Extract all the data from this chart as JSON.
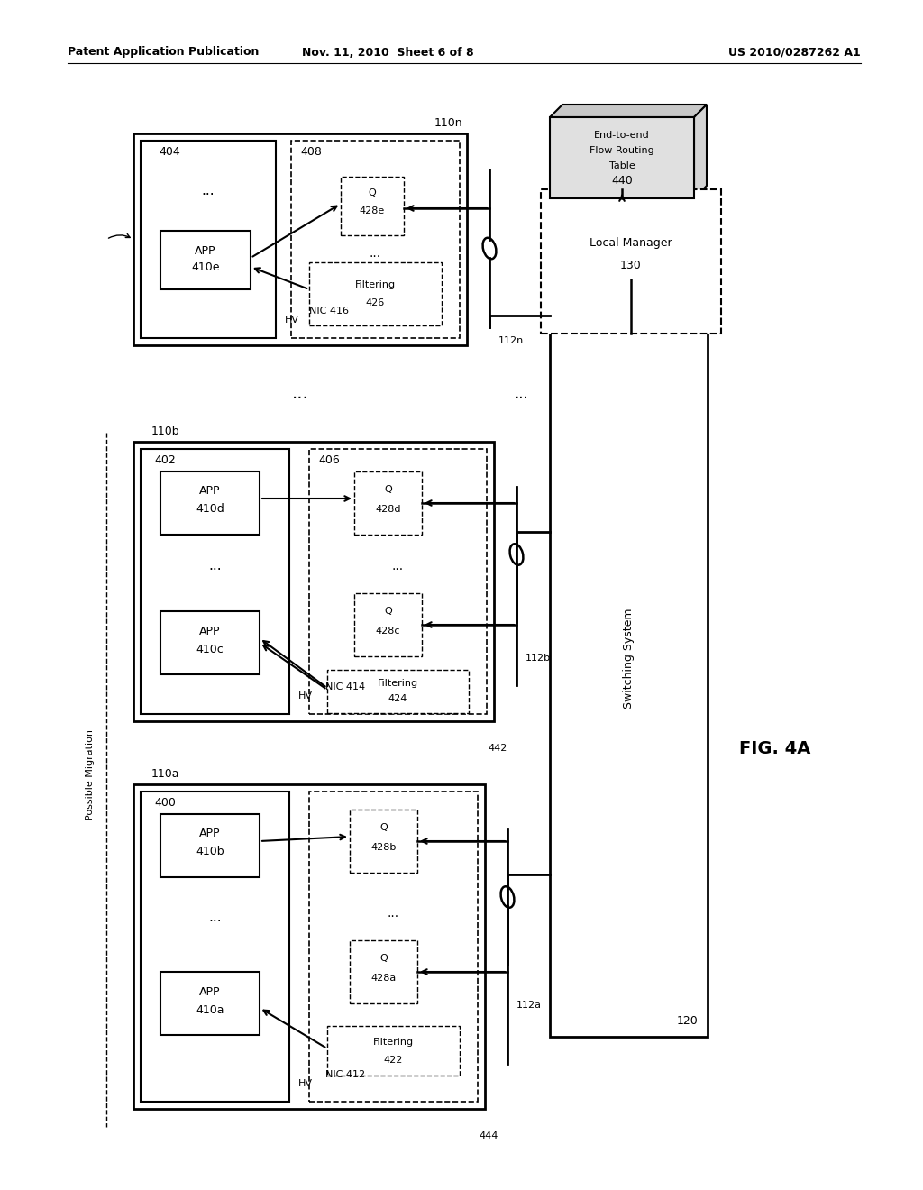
{
  "bg_color": "#ffffff",
  "header_left": "Patent Application Publication",
  "header_mid": "Nov. 11, 2010  Sheet 6 of 8",
  "header_right": "US 2010/0287262 A1",
  "fig_label": "FIG. 4A",
  "node_a_label": "110a",
  "node_b_label": "110b",
  "node_n_label": "110n",
  "ref_400": "400",
  "ref_402": "402",
  "ref_404": "404",
  "ref_406": "406",
  "ref_408": "408",
  "nic_a": "NIC 412",
  "filt_a": "Filtering\n422",
  "nic_b": "NIC 414",
  "filt_b": "Filtering\n424",
  "nic_n": "NIC 416",
  "filt_n": "Filtering\n426",
  "hv_label": "HV",
  "link_a": "112a",
  "link_b": "112b",
  "link_n": "112n",
  "switching_system": "Switching System",
  "switch_ref": "120",
  "local_manager_line1": "Local Manager",
  "local_manager_line2": "130",
  "flow_line1": "End-to-end",
  "flow_line2": "Flow Routing",
  "flow_line3": "Table",
  "flow_ref": "440",
  "possible_migration": "Possible Migration",
  "ref_442": "442",
  "ref_444": "444",
  "dots": "..."
}
